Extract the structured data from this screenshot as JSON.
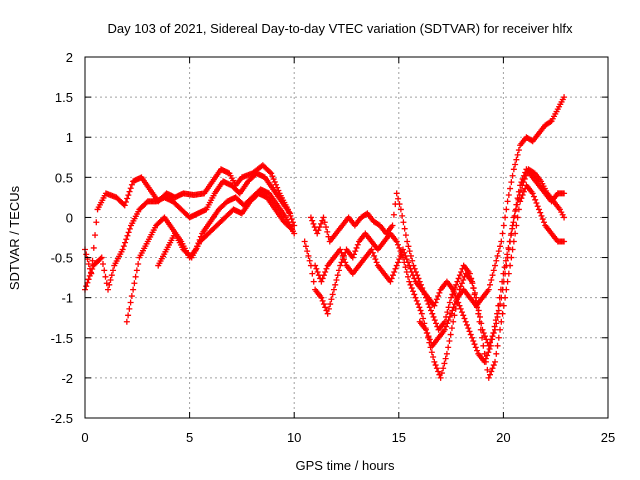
{
  "chart_data": {
    "type": "scatter",
    "title": "Day 103 of 2021, Sidereal Day-to-day VTEC variation (SDTVAR) for receiver hlfx",
    "xlabel": "GPS time / hours",
    "ylabel": "SDTVAR / TECUs",
    "xlim": [
      0,
      25
    ],
    "ylim": [
      -2.5,
      2
    ],
    "x_ticks": [
      0,
      5,
      10,
      15,
      20,
      25
    ],
    "y_ticks": [
      -2.5,
      -2,
      -1.5,
      -1,
      -0.5,
      0,
      0.5,
      1,
      1.5,
      2
    ],
    "x_tick_labels": [
      "0",
      "5",
      "10",
      "15",
      "20",
      "25"
    ],
    "y_tick_labels": [
      "-2.5",
      "-2",
      "-1.5",
      "-1",
      "-0.5",
      "0",
      "0.5",
      "1",
      "1.5",
      "2"
    ],
    "grid": true,
    "marker": "+",
    "marker_color": "#ff0000",
    "series": [
      {
        "points": [
          [
            0,
            -0.4
          ],
          [
            0.3,
            -0.7
          ],
          [
            0.6,
            0.1
          ],
          [
            1.0,
            0.3
          ],
          [
            1.5,
            0.25
          ],
          [
            1.9,
            0.15
          ],
          [
            2.3,
            0.45
          ],
          [
            2.7,
            0.5
          ],
          [
            3.1,
            0.35
          ],
          [
            3.5,
            0.2
          ],
          [
            3.9,
            0.3
          ],
          [
            4.3,
            0.25
          ],
          [
            4.7,
            0.3
          ],
          [
            5.2,
            0.28
          ],
          [
            5.7,
            0.3
          ],
          [
            6.1,
            0.45
          ],
          [
            6.5,
            0.6
          ],
          [
            6.9,
            0.55
          ],
          [
            7.2,
            0.4
          ],
          [
            7.5,
            0.5
          ],
          [
            8.0,
            0.55
          ],
          [
            8.5,
            0.65
          ],
          [
            8.9,
            0.55
          ],
          [
            9.3,
            0.3
          ],
          [
            9.7,
            0.1
          ],
          [
            10.0,
            -0.1
          ]
        ]
      },
      {
        "points": [
          [
            0,
            -0.9
          ],
          [
            0.4,
            -0.6
          ],
          [
            0.8,
            -0.5
          ],
          [
            1.1,
            -0.9
          ],
          [
            1.4,
            -0.6
          ],
          [
            1.8,
            -0.4
          ],
          [
            2.2,
            -0.1
          ],
          [
            2.6,
            0.1
          ],
          [
            3.0,
            0.2
          ],
          [
            3.4,
            0.2
          ],
          [
            3.8,
            0.25
          ],
          [
            4.2,
            0.2
          ],
          [
            4.6,
            0.1
          ],
          [
            5.0,
            0.0
          ],
          [
            5.4,
            0.05
          ],
          [
            5.8,
            0.1
          ],
          [
            6.2,
            0.3
          ],
          [
            6.6,
            0.45
          ],
          [
            7.0,
            0.4
          ],
          [
            7.4,
            0.3
          ],
          [
            7.8,
            0.45
          ],
          [
            8.2,
            0.55
          ],
          [
            8.6,
            0.5
          ],
          [
            9.0,
            0.35
          ],
          [
            9.4,
            0.2
          ],
          [
            9.8,
            0.05
          ]
        ]
      },
      {
        "points": [
          [
            2.0,
            -1.3
          ],
          [
            2.3,
            -0.9
          ],
          [
            2.6,
            -0.5
          ],
          [
            3.0,
            -0.3
          ],
          [
            3.4,
            -0.1
          ],
          [
            3.8,
            0.0
          ],
          [
            4.2,
            -0.15
          ],
          [
            4.6,
            -0.3
          ],
          [
            5.0,
            -0.5
          ],
          [
            5.3,
            -0.4
          ],
          [
            5.6,
            -0.2
          ],
          [
            6.0,
            -0.05
          ],
          [
            6.4,
            0.1
          ],
          [
            6.8,
            0.2
          ],
          [
            7.2,
            0.25
          ],
          [
            7.6,
            0.15
          ],
          [
            8.0,
            0.25
          ],
          [
            8.4,
            0.35
          ],
          [
            8.8,
            0.3
          ],
          [
            9.2,
            0.15
          ],
          [
            9.6,
            0.0
          ],
          [
            10.0,
            -0.2
          ]
        ]
      },
      {
        "points": [
          [
            3.5,
            -0.6
          ],
          [
            3.9,
            -0.4
          ],
          [
            4.3,
            -0.2
          ],
          [
            4.7,
            -0.4
          ],
          [
            5.1,
            -0.5
          ],
          [
            5.5,
            -0.3
          ],
          [
            5.9,
            -0.2
          ],
          [
            6.3,
            -0.1
          ],
          [
            6.7,
            0.0
          ],
          [
            7.1,
            0.1
          ],
          [
            7.5,
            0.05
          ],
          [
            7.9,
            0.2
          ],
          [
            8.3,
            0.3
          ],
          [
            8.7,
            0.25
          ],
          [
            9.1,
            0.1
          ],
          [
            9.5,
            -0.05
          ],
          [
            9.9,
            -0.15
          ]
        ]
      },
      {
        "points": [
          [
            10.5,
            -0.3
          ],
          [
            10.8,
            -0.6
          ],
          [
            11.0,
            -0.9
          ],
          [
            11.3,
            -1.0
          ],
          [
            11.6,
            -1.2
          ],
          [
            11.9,
            -0.9
          ],
          [
            12.2,
            -0.6
          ],
          [
            12.5,
            -0.4
          ],
          [
            12.8,
            -0.5
          ],
          [
            13.1,
            -0.3
          ],
          [
            13.4,
            -0.2
          ],
          [
            13.7,
            -0.3
          ],
          [
            14.0,
            -0.4
          ],
          [
            14.3,
            -0.3
          ],
          [
            14.6,
            -0.2
          ],
          [
            14.9,
            -0.3
          ],
          [
            15.2,
            -0.5
          ],
          [
            15.5,
            -0.8
          ],
          [
            15.8,
            -1.0
          ],
          [
            16.1,
            -1.2
          ],
          [
            16.4,
            -1.5
          ],
          [
            16.7,
            -1.8
          ],
          [
            17.0,
            -2.0
          ],
          [
            17.3,
            -1.7
          ],
          [
            17.6,
            -1.3
          ],
          [
            17.9,
            -0.9
          ],
          [
            18.2,
            -0.7
          ],
          [
            18.5,
            -0.8
          ],
          [
            18.8,
            -1.2
          ],
          [
            19.1,
            -1.7
          ],
          [
            19.3,
            -2.0
          ],
          [
            19.6,
            -1.8
          ],
          [
            19.9,
            -1.3
          ],
          [
            20.2,
            -0.8
          ],
          [
            20.5,
            -0.3
          ],
          [
            20.8,
            0.2
          ],
          [
            21.1,
            0.4
          ],
          [
            21.4,
            0.3
          ],
          [
            21.7,
            0.1
          ],
          [
            22.0,
            -0.1
          ],
          [
            22.3,
            -0.2
          ],
          [
            22.6,
            -0.3
          ],
          [
            22.9,
            -0.3
          ]
        ]
      },
      {
        "points": [
          [
            10.8,
            0.0
          ],
          [
            11.1,
            -0.2
          ],
          [
            11.4,
            0.0
          ],
          [
            11.7,
            -0.3
          ],
          [
            12.0,
            -0.2
          ],
          [
            12.3,
            -0.1
          ],
          [
            12.6,
            0.0
          ],
          [
            12.9,
            -0.1
          ],
          [
            13.2,
            0.0
          ],
          [
            13.5,
            0.05
          ],
          [
            13.8,
            -0.05
          ],
          [
            14.1,
            -0.1
          ],
          [
            14.4,
            -0.2
          ],
          [
            14.7,
            -0.1
          ],
          [
            14.9,
            0.3
          ],
          [
            15.1,
            0.1
          ],
          [
            15.4,
            -0.3
          ],
          [
            15.7,
            -0.6
          ],
          [
            16.0,
            -0.8
          ],
          [
            16.3,
            -1.0
          ],
          [
            16.6,
            -1.2
          ],
          [
            16.9,
            -1.4
          ],
          [
            17.2,
            -1.3
          ],
          [
            17.5,
            -1.0
          ],
          [
            17.8,
            -0.8
          ],
          [
            18.1,
            -0.6
          ],
          [
            18.4,
            -0.7
          ],
          [
            18.7,
            -1.0
          ],
          [
            19.0,
            -1.4
          ],
          [
            19.3,
            -1.6
          ],
          [
            19.6,
            -1.4
          ],
          [
            19.9,
            -1.0
          ],
          [
            20.2,
            -0.5
          ],
          [
            20.5,
            0.0
          ],
          [
            20.8,
            0.4
          ],
          [
            21.1,
            0.6
          ],
          [
            21.4,
            0.5
          ],
          [
            21.7,
            0.4
          ],
          [
            22.0,
            0.3
          ],
          [
            22.3,
            0.2
          ],
          [
            22.6,
            0.3
          ],
          [
            22.9,
            0.3
          ]
        ]
      },
      {
        "points": [
          [
            11.0,
            -0.6
          ],
          [
            11.3,
            -0.8
          ],
          [
            11.6,
            -0.6
          ],
          [
            11.9,
            -0.5
          ],
          [
            12.2,
            -0.4
          ],
          [
            12.5,
            -0.6
          ],
          [
            12.8,
            -0.7
          ],
          [
            13.1,
            -0.6
          ],
          [
            13.4,
            -0.5
          ],
          [
            13.7,
            -0.4
          ],
          [
            14.0,
            -0.6
          ],
          [
            14.3,
            -0.7
          ],
          [
            14.6,
            -0.8
          ],
          [
            14.9,
            -0.6
          ],
          [
            15.2,
            -0.4
          ],
          [
            15.5,
            -0.6
          ],
          [
            15.8,
            -0.8
          ],
          [
            16.1,
            -0.9
          ],
          [
            16.4,
            -1.0
          ],
          [
            16.7,
            -1.1
          ],
          [
            17.0,
            -0.9
          ],
          [
            17.3,
            -0.8
          ],
          [
            17.6,
            -0.9
          ],
          [
            17.9,
            -1.1
          ],
          [
            18.2,
            -1.3
          ],
          [
            18.5,
            -1.5
          ],
          [
            18.8,
            -1.7
          ],
          [
            19.1,
            -1.8
          ],
          [
            19.4,
            -1.6
          ],
          [
            19.7,
            -1.2
          ],
          [
            20.0,
            -0.7
          ],
          [
            20.3,
            -0.3
          ],
          [
            20.6,
            0.1
          ],
          [
            20.9,
            0.4
          ],
          [
            21.2,
            0.6
          ],
          [
            21.5,
            0.55
          ],
          [
            21.8,
            0.45
          ],
          [
            22.1,
            0.3
          ],
          [
            22.4,
            0.2
          ],
          [
            22.7,
            0.1
          ],
          [
            22.9,
            0.0
          ]
        ]
      },
      {
        "points": [
          [
            16.0,
            -1.3
          ],
          [
            16.3,
            -1.4
          ],
          [
            16.6,
            -1.6
          ],
          [
            16.9,
            -1.5
          ],
          [
            17.2,
            -1.4
          ],
          [
            17.5,
            -1.2
          ],
          [
            17.8,
            -1.0
          ],
          [
            18.1,
            -0.9
          ],
          [
            18.4,
            -1.0
          ],
          [
            18.7,
            -1.1
          ],
          [
            19.0,
            -1.0
          ],
          [
            19.3,
            -0.9
          ],
          [
            19.6,
            -0.6
          ],
          [
            19.9,
            -0.3
          ],
          [
            20.2,
            0.2
          ],
          [
            20.5,
            0.6
          ],
          [
            20.8,
            0.9
          ],
          [
            21.1,
            1.0
          ],
          [
            21.4,
            0.95
          ],
          [
            21.7,
            1.05
          ],
          [
            22.0,
            1.15
          ],
          [
            22.3,
            1.2
          ],
          [
            22.6,
            1.35
          ],
          [
            22.9,
            1.5
          ]
        ]
      }
    ]
  }
}
